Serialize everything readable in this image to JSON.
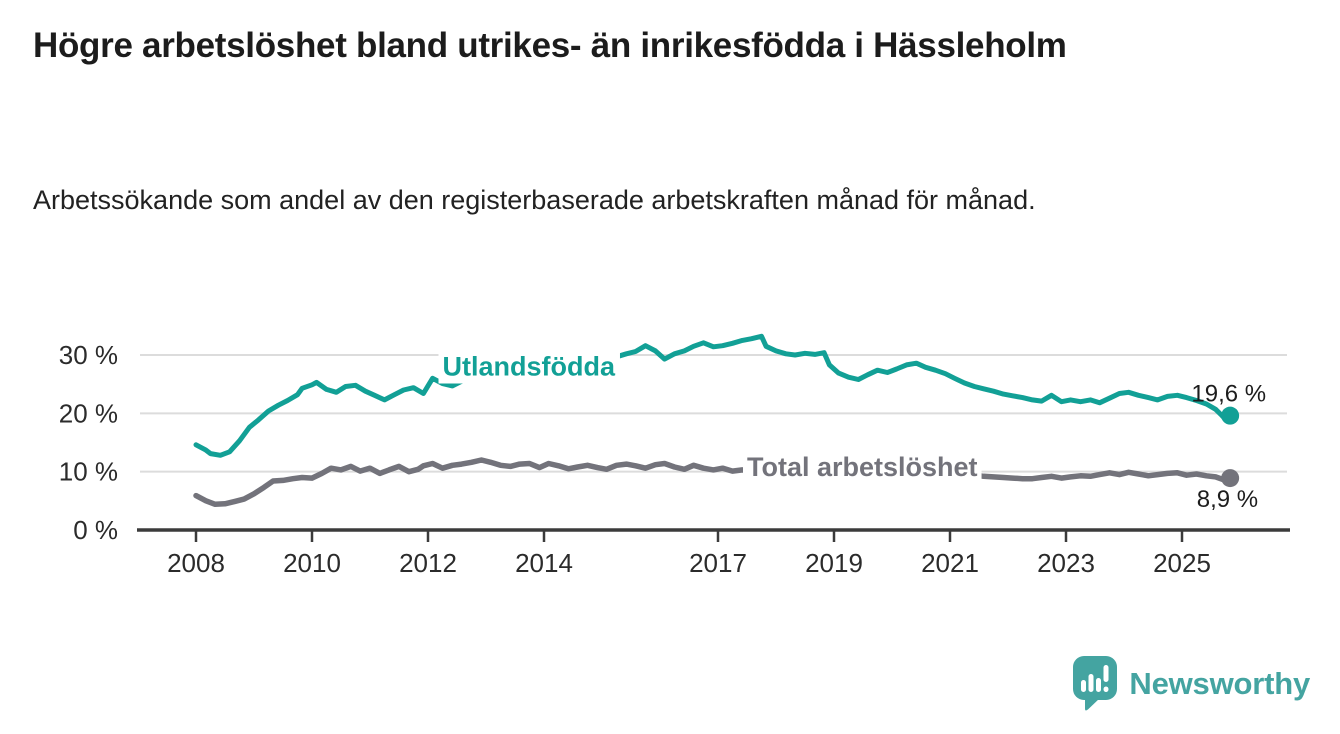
{
  "header": {
    "title": "Högre arbetslöshet bland utrikes- än inrikesfödda i Hässleholm",
    "subtitle": "Arbetssökande som andel av den registerbaserade arbetskraften månad för månad."
  },
  "branding": {
    "logo_text": "Newsworthy",
    "logo_color": "#44a4a1"
  },
  "colors": {
    "teal": "#12a096",
    "gray": "#73737b",
    "grid": "#dcdcdc",
    "axis": "#3b3b3b",
    "tick_text": "#2b2b2b",
    "annotation_text": "#1d1d1d",
    "background": "#ffffff"
  },
  "chart_data": {
    "type": "line",
    "title": "Högre arbetslöshet bland utrikes- än inrikesfödda i Hässleholm",
    "subtitle": "Arbetssökande som andel av den registerbaserade arbetskraften månad för månad.",
    "xlabel": "",
    "ylabel": "",
    "grid": true,
    "x_axis": {
      "tick_values": [
        2008,
        2010,
        2012,
        2014,
        2017,
        2019,
        2021,
        2023,
        2025
      ],
      "tick_labels": [
        "2008",
        "2010",
        "2012",
        "2014",
        "2017",
        "2019",
        "2021",
        "2023",
        "2025"
      ],
      "range": [
        2007.0,
        2026.9
      ]
    },
    "y_axis": {
      "tick_values": [
        0,
        10,
        20,
        30
      ],
      "tick_labels": [
        "0 %",
        "10 %",
        "20 %",
        "30 %"
      ],
      "range": [
        0,
        35
      ],
      "unit": "%"
    },
    "series": [
      {
        "name": "Utlandsfödda",
        "color": "#12a096",
        "stroke_width": 5,
        "end_label": "19,6 %",
        "end_value": 19.6,
        "label_anchor": {
          "x": 2012.25,
          "y": 28.2
        },
        "points": [
          [
            2008.0,
            14.6
          ],
          [
            2008.17,
            13.7
          ],
          [
            2008.25,
            13.1
          ],
          [
            2008.42,
            12.8
          ],
          [
            2008.58,
            13.4
          ],
          [
            2008.75,
            15.3
          ],
          [
            2008.92,
            17.6
          ],
          [
            2009.08,
            18.9
          ],
          [
            2009.25,
            20.4
          ],
          [
            2009.42,
            21.4
          ],
          [
            2009.58,
            22.2
          ],
          [
            2009.75,
            23.2
          ],
          [
            2009.83,
            24.3
          ],
          [
            2010.0,
            24.9
          ],
          [
            2010.08,
            25.3
          ],
          [
            2010.25,
            24.1
          ],
          [
            2010.42,
            23.6
          ],
          [
            2010.58,
            24.6
          ],
          [
            2010.75,
            24.8
          ],
          [
            2010.92,
            23.8
          ],
          [
            2011.08,
            23.1
          ],
          [
            2011.25,
            22.3
          ],
          [
            2011.42,
            23.2
          ],
          [
            2011.58,
            24.0
          ],
          [
            2011.75,
            24.4
          ],
          [
            2011.92,
            23.4
          ],
          [
            2012.08,
            26.0
          ],
          [
            2012.25,
            25.1
          ],
          [
            2012.42,
            24.7
          ],
          [
            2012.58,
            25.5
          ],
          [
            2012.75,
            26.0
          ],
          [
            2012.92,
            25.6
          ],
          [
            2013.08,
            26.3
          ],
          [
            2013.25,
            25.9
          ],
          [
            2013.42,
            26.5
          ],
          [
            2013.58,
            26.9
          ],
          [
            2013.75,
            26.6
          ],
          [
            2013.92,
            27.2
          ],
          [
            2014.08,
            27.5
          ],
          [
            2014.25,
            27.1
          ],
          [
            2014.42,
            27.7
          ],
          [
            2014.58,
            28.0
          ],
          [
            2014.75,
            28.4
          ],
          [
            2014.92,
            28.9
          ],
          [
            2015.08,
            29.3
          ],
          [
            2015.25,
            29.7
          ],
          [
            2015.42,
            30.2
          ],
          [
            2015.58,
            30.6
          ],
          [
            2015.75,
            31.6
          ],
          [
            2015.92,
            30.7
          ],
          [
            2016.08,
            29.3
          ],
          [
            2016.25,
            30.2
          ],
          [
            2016.42,
            30.7
          ],
          [
            2016.58,
            31.5
          ],
          [
            2016.75,
            32.1
          ],
          [
            2016.92,
            31.4
          ],
          [
            2017.08,
            31.6
          ],
          [
            2017.25,
            32.0
          ],
          [
            2017.42,
            32.5
          ],
          [
            2017.58,
            32.8
          ],
          [
            2017.75,
            33.2
          ],
          [
            2017.83,
            31.5
          ],
          [
            2018.0,
            30.7
          ],
          [
            2018.17,
            30.2
          ],
          [
            2018.33,
            30.0
          ],
          [
            2018.5,
            30.3
          ],
          [
            2018.67,
            30.1
          ],
          [
            2018.83,
            30.4
          ],
          [
            2018.92,
            28.3
          ],
          [
            2019.08,
            26.9
          ],
          [
            2019.25,
            26.2
          ],
          [
            2019.42,
            25.8
          ],
          [
            2019.58,
            26.6
          ],
          [
            2019.75,
            27.4
          ],
          [
            2019.92,
            27.0
          ],
          [
            2020.08,
            27.6
          ],
          [
            2020.25,
            28.3
          ],
          [
            2020.42,
            28.6
          ],
          [
            2020.58,
            27.9
          ],
          [
            2020.75,
            27.4
          ],
          [
            2020.92,
            26.8
          ],
          [
            2021.08,
            26.0
          ],
          [
            2021.25,
            25.2
          ],
          [
            2021.42,
            24.6
          ],
          [
            2021.58,
            24.2
          ],
          [
            2021.75,
            23.8
          ],
          [
            2021.92,
            23.3
          ],
          [
            2022.08,
            23.0
          ],
          [
            2022.25,
            22.7
          ],
          [
            2022.42,
            22.3
          ],
          [
            2022.58,
            22.1
          ],
          [
            2022.75,
            23.1
          ],
          [
            2022.92,
            22.0
          ],
          [
            2023.08,
            22.3
          ],
          [
            2023.25,
            22.0
          ],
          [
            2023.42,
            22.3
          ],
          [
            2023.58,
            21.8
          ],
          [
            2023.75,
            22.6
          ],
          [
            2023.92,
            23.4
          ],
          [
            2024.08,
            23.6
          ],
          [
            2024.25,
            23.1
          ],
          [
            2024.42,
            22.7
          ],
          [
            2024.58,
            22.3
          ],
          [
            2024.75,
            22.9
          ],
          [
            2024.92,
            23.1
          ],
          [
            2025.08,
            22.7
          ],
          [
            2025.25,
            22.2
          ],
          [
            2025.42,
            21.6
          ],
          [
            2025.58,
            20.7
          ],
          [
            2025.67,
            19.8
          ],
          [
            2025.75,
            19.0
          ],
          [
            2025.83,
            19.6
          ]
        ]
      },
      {
        "name": "Total arbetslöshet",
        "color": "#73737b",
        "stroke_width": 5.5,
        "end_label": "8,9 %",
        "end_value": 8.9,
        "label_anchor": {
          "x": 2017.5,
          "y": 11.0
        },
        "points": [
          [
            2008.0,
            5.9
          ],
          [
            2008.17,
            5.0
          ],
          [
            2008.33,
            4.4
          ],
          [
            2008.5,
            4.5
          ],
          [
            2008.67,
            4.9
          ],
          [
            2008.83,
            5.3
          ],
          [
            2009.0,
            6.2
          ],
          [
            2009.17,
            7.3
          ],
          [
            2009.33,
            8.4
          ],
          [
            2009.5,
            8.5
          ],
          [
            2009.67,
            8.8
          ],
          [
            2009.83,
            9.0
          ],
          [
            2010.0,
            8.9
          ],
          [
            2010.17,
            9.7
          ],
          [
            2010.33,
            10.6
          ],
          [
            2010.5,
            10.3
          ],
          [
            2010.67,
            10.9
          ],
          [
            2010.83,
            10.1
          ],
          [
            2011.0,
            10.6
          ],
          [
            2011.17,
            9.7
          ],
          [
            2011.33,
            10.3
          ],
          [
            2011.5,
            10.9
          ],
          [
            2011.67,
            10.0
          ],
          [
            2011.83,
            10.4
          ],
          [
            2011.92,
            11.0
          ],
          [
            2012.08,
            11.4
          ],
          [
            2012.25,
            10.6
          ],
          [
            2012.42,
            11.1
          ],
          [
            2012.58,
            11.3
          ],
          [
            2012.75,
            11.6
          ],
          [
            2012.92,
            12.0
          ],
          [
            2013.08,
            11.6
          ],
          [
            2013.25,
            11.1
          ],
          [
            2013.42,
            10.9
          ],
          [
            2013.58,
            11.3
          ],
          [
            2013.75,
            11.4
          ],
          [
            2013.92,
            10.7
          ],
          [
            2014.08,
            11.4
          ],
          [
            2014.25,
            11.0
          ],
          [
            2014.42,
            10.5
          ],
          [
            2014.58,
            10.8
          ],
          [
            2014.75,
            11.1
          ],
          [
            2014.92,
            10.7
          ],
          [
            2015.08,
            10.4
          ],
          [
            2015.25,
            11.1
          ],
          [
            2015.42,
            11.3
          ],
          [
            2015.58,
            11.0
          ],
          [
            2015.75,
            10.6
          ],
          [
            2015.92,
            11.2
          ],
          [
            2016.08,
            11.4
          ],
          [
            2016.25,
            10.8
          ],
          [
            2016.42,
            10.4
          ],
          [
            2016.58,
            11.1
          ],
          [
            2016.75,
            10.6
          ],
          [
            2016.92,
            10.3
          ],
          [
            2017.08,
            10.6
          ],
          [
            2017.25,
            10.1
          ],
          [
            2017.42,
            10.3
          ],
          [
            2017.58,
            10.0
          ],
          [
            2017.75,
            9.9
          ],
          [
            2017.92,
            10.1
          ],
          [
            2018.08,
            10.0
          ],
          [
            2018.25,
            9.7
          ],
          [
            2018.42,
            9.9
          ],
          [
            2018.58,
            9.8
          ],
          [
            2018.75,
            9.6
          ],
          [
            2018.92,
            9.8
          ],
          [
            2019.08,
            9.7
          ],
          [
            2019.25,
            9.4
          ],
          [
            2019.42,
            9.6
          ],
          [
            2019.58,
            9.5
          ],
          [
            2019.75,
            9.3
          ],
          [
            2019.92,
            9.5
          ],
          [
            2020.08,
            9.7
          ],
          [
            2020.25,
            9.9
          ],
          [
            2020.42,
            9.8
          ],
          [
            2020.58,
            9.6
          ],
          [
            2020.75,
            9.5
          ],
          [
            2020.92,
            9.6
          ],
          [
            2021.08,
            9.5
          ],
          [
            2021.25,
            9.3
          ],
          [
            2021.42,
            9.4
          ],
          [
            2021.58,
            9.2
          ],
          [
            2021.75,
            9.1
          ],
          [
            2021.92,
            9.0
          ],
          [
            2022.08,
            8.9
          ],
          [
            2022.25,
            8.8
          ],
          [
            2022.42,
            8.8
          ],
          [
            2022.58,
            9.0
          ],
          [
            2022.75,
            9.2
          ],
          [
            2022.92,
            8.9
          ],
          [
            2023.08,
            9.1
          ],
          [
            2023.25,
            9.3
          ],
          [
            2023.42,
            9.2
          ],
          [
            2023.58,
            9.5
          ],
          [
            2023.75,
            9.8
          ],
          [
            2023.92,
            9.5
          ],
          [
            2024.08,
            9.9
          ],
          [
            2024.25,
            9.6
          ],
          [
            2024.42,
            9.3
          ],
          [
            2024.58,
            9.5
          ],
          [
            2024.75,
            9.7
          ],
          [
            2024.92,
            9.8
          ],
          [
            2025.08,
            9.4
          ],
          [
            2025.25,
            9.6
          ],
          [
            2025.42,
            9.3
          ],
          [
            2025.58,
            9.1
          ],
          [
            2025.75,
            8.5
          ],
          [
            2025.83,
            8.9
          ]
        ]
      }
    ],
    "legend_position": "inline-labels"
  }
}
